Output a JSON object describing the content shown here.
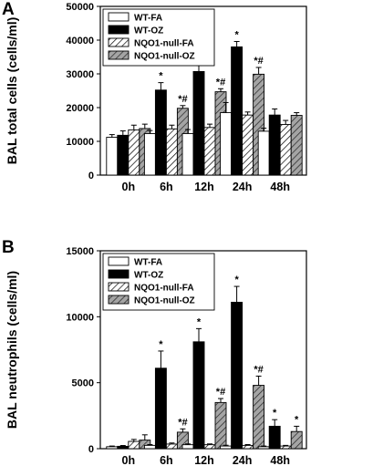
{
  "chart_data": [
    {
      "panel": "A",
      "type": "bar",
      "ylabel": "BAL total cells (cells/ml)",
      "xlabel": "",
      "ylim": [
        0,
        50000
      ],
      "yticks": [
        "0",
        "10000",
        "20000",
        "30000",
        "40000",
        "50000"
      ],
      "categories": [
        "0h",
        "6h",
        "12h",
        "24h",
        "48h"
      ],
      "legend_position": "top-left",
      "series": [
        {
          "name": "WT-FA",
          "style": "white",
          "values": [
            11200,
            12300,
            12300,
            18500,
            13000
          ],
          "errors": [
            800,
            900,
            1200,
            3000,
            900
          ],
          "marks": [
            "",
            "",
            "",
            "",
            ""
          ]
        },
        {
          "name": "WT-OZ",
          "style": "black",
          "values": [
            11800,
            25200,
            30700,
            38000,
            17800
          ],
          "errors": [
            1300,
            2200,
            1800,
            1600,
            1800
          ],
          "marks": [
            "",
            "*",
            "*",
            "*",
            ""
          ]
        },
        {
          "name": "NQO1-null-FA",
          "style": "hatch-white",
          "values": [
            13400,
            13700,
            14100,
            17800,
            15000
          ],
          "errors": [
            1400,
            1100,
            1000,
            900,
            1200
          ],
          "marks": [
            "",
            "",
            "",
            "",
            ""
          ]
        },
        {
          "name": "NQO1-null-OZ",
          "style": "hatch-gray",
          "values": [
            13800,
            19800,
            24700,
            29900,
            17700
          ],
          "errors": [
            1300,
            800,
            900,
            2000,
            800
          ],
          "marks": [
            "",
            "*#",
            "*#",
            "*#",
            ""
          ]
        }
      ]
    },
    {
      "panel": "B",
      "type": "bar",
      "ylabel": "BAL neutrophils (cells/ml)",
      "xlabel": "",
      "ylim": [
        0,
        15000
      ],
      "yticks": [
        "0",
        "5000",
        "10000",
        "15000"
      ],
      "categories": [
        "0h",
        "6h",
        "12h",
        "24h",
        "48h"
      ],
      "legend_position": "top-left",
      "series": [
        {
          "name": "WT-FA",
          "style": "white",
          "values": [
            150,
            250,
            300,
            200,
            150
          ],
          "errors": [
            50,
            60,
            60,
            60,
            50
          ],
          "marks": [
            "",
            "",
            "",
            "",
            ""
          ]
        },
        {
          "name": "WT-OZ",
          "style": "black",
          "values": [
            180,
            6100,
            8100,
            11100,
            1700
          ],
          "errors": [
            60,
            1300,
            1000,
            1200,
            500
          ],
          "marks": [
            "",
            "*",
            "*",
            "*",
            "*"
          ]
        },
        {
          "name": "NQO1-null-FA",
          "style": "hatch-white",
          "values": [
            550,
            350,
            300,
            250,
            200
          ],
          "errors": [
            150,
            80,
            60,
            60,
            50
          ],
          "marks": [
            "",
            "",
            "",
            "",
            ""
          ]
        },
        {
          "name": "NQO1-null-OZ",
          "style": "hatch-gray",
          "values": [
            650,
            1250,
            3500,
            4800,
            1300
          ],
          "errors": [
            400,
            250,
            300,
            700,
            400
          ],
          "marks": [
            "",
            "*#",
            "*#",
            "*#",
            "*"
          ]
        }
      ]
    }
  ]
}
